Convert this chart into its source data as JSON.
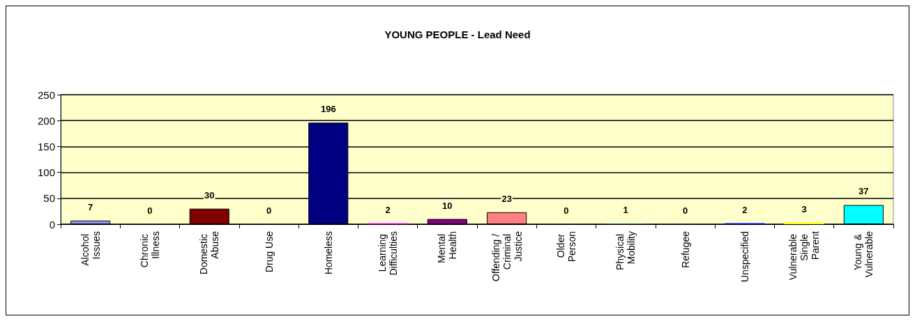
{
  "chart_data": {
    "type": "bar",
    "title": "YOUNG PEOPLE - Lead Need",
    "categories": [
      "Alcohol Issues",
      "Chronic Illness",
      "Domestic Abuse",
      "Drug Use",
      "Homeless",
      "Learning Difficulties",
      "Mental Health",
      "Offending / Criminal Justice",
      "Older Person",
      "Physical Mobility",
      "Refugee",
      "Unspecified",
      "Vulnerable Single Parent",
      "Young & Vulnerable"
    ],
    "values": [
      7,
      0,
      30,
      0,
      196,
      2,
      10,
      23,
      0,
      1,
      0,
      2,
      3,
      37
    ],
    "colors": [
      "#9999ff",
      "#993366",
      "#800000",
      "#ffffcc",
      "#000080",
      "#ff00ff",
      "#800080",
      "#ff8080",
      "#0066cc",
      "#008080",
      "#ccccff",
      "#0000ff",
      "#ffff00",
      "#00ffff"
    ],
    "ylim": [
      0,
      250
    ],
    "yticks": [
      0,
      50,
      100,
      150,
      200,
      250
    ],
    "grid": "y",
    "data_labels": true
  }
}
